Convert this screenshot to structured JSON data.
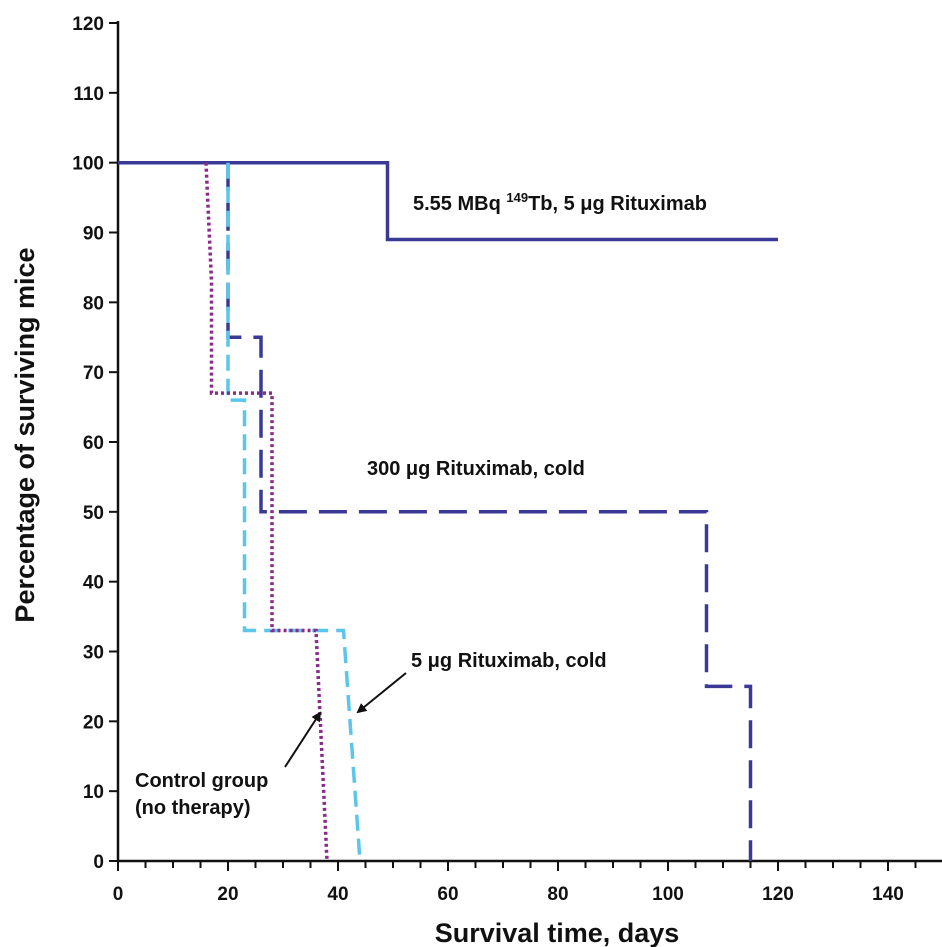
{
  "chart_data": {
    "type": "line",
    "xlabel": "Survival time, days",
    "ylabel": "Percentage of surviving mice",
    "xlim": [
      0,
      150
    ],
    "ylim": [
      0,
      120
    ],
    "xticks": [
      "0",
      "20",
      "40",
      "60",
      "80",
      "100",
      "120",
      "140"
    ],
    "xtick_values": [
      0,
      20,
      40,
      60,
      80,
      100,
      120,
      140
    ],
    "yticks": [
      "0",
      "10",
      "20",
      "30",
      "40",
      "50",
      "60",
      "70",
      "80",
      "90",
      "100",
      "110",
      "120"
    ],
    "ytick_values": [
      0,
      10,
      20,
      30,
      40,
      50,
      60,
      70,
      80,
      90,
      100,
      110,
      120
    ],
    "grid": false,
    "series": [
      {
        "key": "tb149",
        "style": "solid",
        "color": "#3a3a96",
        "x": [
          0,
          49,
          49,
          120
        ],
        "y": [
          100,
          100,
          89,
          89
        ]
      },
      {
        "key": "rit300",
        "style": "long-dash",
        "color": "#3a3a96",
        "x": [
          20,
          20,
          26,
          26,
          107,
          107,
          115,
          115
        ],
        "y": [
          100,
          75,
          75,
          50,
          50,
          25,
          25,
          0
        ]
      },
      {
        "key": "rit5",
        "style": "dash",
        "color": "#5bc6ea",
        "x": [
          20,
          20,
          23,
          23,
          41,
          41,
          44,
          44
        ],
        "y": [
          100,
          66,
          66,
          33,
          33,
          33,
          0,
          0
        ]
      },
      {
        "key": "control",
        "style": "dotted",
        "color": "#8a2a8a",
        "x": [
          16,
          17,
          17,
          27,
          27,
          28,
          28,
          36,
          36,
          38,
          38
        ],
        "y": [
          100,
          83,
          67,
          67,
          67,
          67,
          33,
          33,
          33,
          0,
          0
        ]
      }
    ],
    "annotations": {
      "tb149_pre": "5.55 MBq ",
      "tb149_sup": "149",
      "tb149_post": "Tb, 5 μg Rituximab",
      "rit300": "300 μg Rituximab, cold",
      "rit5": "5 μg Rituximab, cold",
      "control_line1": "Control group",
      "control_line2": "(no therapy)"
    }
  }
}
